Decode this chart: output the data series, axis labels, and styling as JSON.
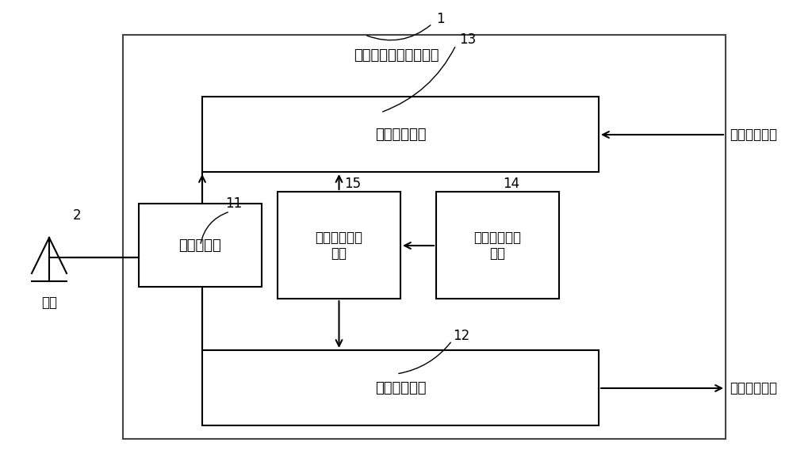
{
  "title": "非对称柔性通信收发机",
  "label_1": "1",
  "label_2": "2",
  "label_11": "11",
  "label_12": "12",
  "label_13": "13",
  "label_14": "14",
  "label_15": "15",
  "antenna_label": "天线",
  "tx_unit_label": "柔性发射单元",
  "rx_unit_label": "柔性接收单元",
  "duplexer_label": "可变双工器",
  "freq_synth_label": "柔性频率合成\n单元",
  "comm_ctrl_label": "柔性通信控制\n单元",
  "baseband_tx_label": "基带发射信号",
  "baseband_rx_label": "基带接收信号",
  "bg_color": "#ffffff",
  "box_edge_color": "#000000",
  "box_fill_color": "#ffffff",
  "outer_box_color": "#555555",
  "text_color": "#000000",
  "arrow_color": "#000000",
  "font_size": 13,
  "label_font_size": 12
}
